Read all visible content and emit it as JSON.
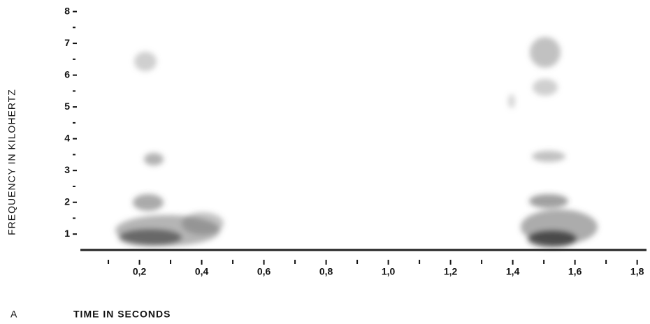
{
  "chart_data": {
    "type": "spectrogram",
    "panel_label": "A",
    "x_label": "TIME IN SECONDS",
    "y_label": "FREQUENCY IN KILOHERTZ",
    "xlim": [
      0.01,
      1.83
    ],
    "ylim": [
      0.5,
      8.1
    ],
    "xticks": [
      {
        "value": 0.2,
        "label": "0,2"
      },
      {
        "value": 0.4,
        "label": "0,4"
      },
      {
        "value": 0.6,
        "label": "0,6"
      },
      {
        "value": 0.8,
        "label": "0,8"
      },
      {
        "value": 1.0,
        "label": "1,0"
      },
      {
        "value": 1.2,
        "label": "1,2"
      },
      {
        "value": 1.4,
        "label": "1,4"
      },
      {
        "value": 1.6,
        "label": "1,6"
      },
      {
        "value": 1.8,
        "label": "1,8"
      }
    ],
    "xminorticks": [
      0.1,
      0.3,
      0.5,
      0.7,
      0.9,
      1.1,
      1.3,
      1.5,
      1.7
    ],
    "yticks": [
      1,
      2,
      3,
      4,
      5,
      6,
      7,
      8
    ],
    "yminorticks": [
      1.5,
      2.5,
      3.5,
      4.5,
      5.5,
      6.5,
      7.5
    ]
  }
}
